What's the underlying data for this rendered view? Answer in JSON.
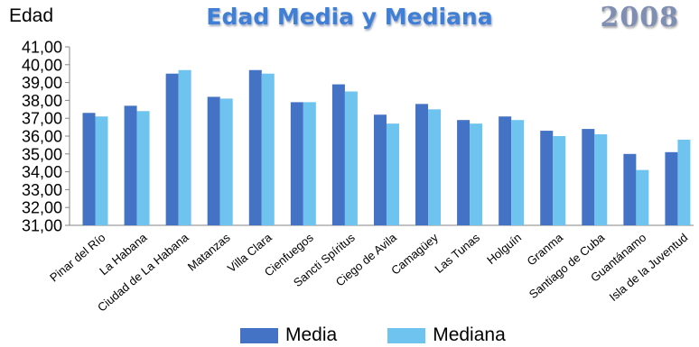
{
  "y_axis_title": "Edad",
  "year_label": "2008",
  "colors": {
    "media": "#4472c4",
    "mediana": "#6ec3ef",
    "axis": "#868686",
    "text": "#000000"
  },
  "chart_data": {
    "type": "bar",
    "title": "Edad Media y Mediana",
    "xlabel": "",
    "ylabel": "Edad",
    "ylim": [
      31,
      41
    ],
    "y_ticks": [
      "31,00",
      "32,00",
      "33,00",
      "34,00",
      "35,00",
      "36,00",
      "37,00",
      "38,00",
      "39,00",
      "40,00",
      "41,00"
    ],
    "categories": [
      "Pinar del Río",
      "La Habana",
      "Ciudad de La Habana",
      "Matanzas",
      "Villa Clara",
      "Cienfuegos",
      "Sancti Spíritus",
      "Ciego de Avila",
      "Camagüey",
      "Las Tunas",
      "Holguín",
      "Granma",
      "Santiago de Cuba",
      "Guantánamo",
      "Isla de la Juventud"
    ],
    "series": [
      {
        "name": "Media",
        "values": [
          37.3,
          37.7,
          39.5,
          38.2,
          39.7,
          37.9,
          38.9,
          37.2,
          37.8,
          36.9,
          37.1,
          36.3,
          36.4,
          35.0,
          35.1
        ]
      },
      {
        "name": "Mediana",
        "values": [
          37.1,
          37.4,
          39.7,
          38.1,
          39.5,
          37.9,
          38.5,
          36.7,
          37.5,
          36.7,
          36.9,
          36.0,
          36.1,
          34.1,
          35.8
        ]
      }
    ],
    "grid": false,
    "legend": "bottom"
  }
}
